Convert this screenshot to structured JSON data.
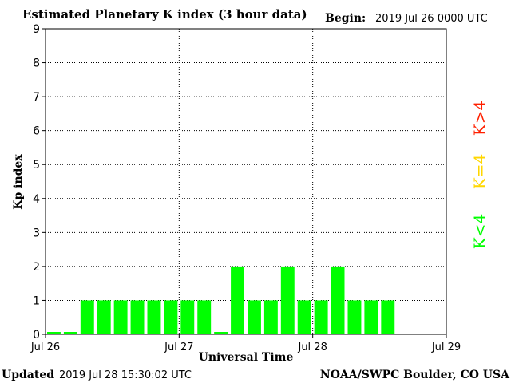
{
  "header": {
    "title": "Estimated Planetary K index (3 hour data)",
    "begin_label": "Begin:",
    "begin_value": "2019 Jul 26 0000 UTC"
  },
  "footer": {
    "updated_label": "Updated",
    "updated_value": "2019 Jul 28 15:30:02 UTC",
    "credit": "NOAA/SWPC Boulder, CO USA"
  },
  "legend": {
    "items": [
      {
        "label": "K<4",
        "color": "#00ff00"
      },
      {
        "label": "K=4",
        "color": "#ffd700"
      },
      {
        "label": "K>4",
        "color": "#ff2000"
      }
    ]
  },
  "chart_data": {
    "type": "bar",
    "title": "Estimated Planetary K index (3 hour data)",
    "xlabel": "Universal Time",
    "ylabel": "Kp index",
    "ylim": [
      0,
      9
    ],
    "yticks": [
      0,
      1,
      2,
      3,
      4,
      5,
      6,
      7,
      8,
      9
    ],
    "xticks": [
      "Jul 26",
      "Jul 27",
      "Jul 28",
      "Jul 29"
    ],
    "slots_total": 24,
    "bar_color": "#00ff00",
    "grid": true,
    "values": [
      0,
      0,
      1,
      1,
      1,
      1,
      1,
      1,
      1,
      1,
      0,
      2,
      1,
      1,
      2,
      1,
      1,
      2,
      1,
      1,
      1
    ]
  }
}
